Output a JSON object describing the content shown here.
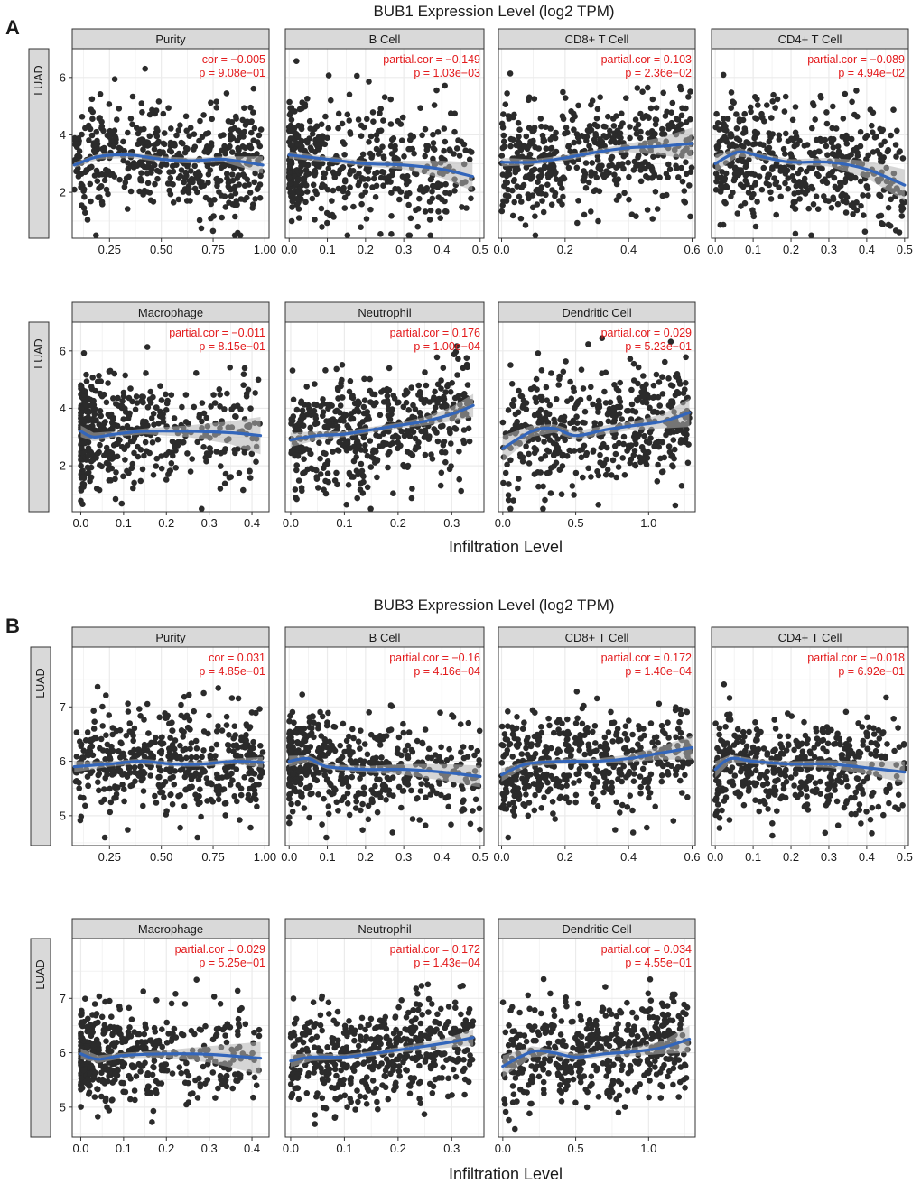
{
  "colors": {
    "panel_bg": "#ffffff",
    "grid": "#ebebeb",
    "strip_bg": "#d9d9d9",
    "border": "#333333",
    "point": "#2b2b2b",
    "smooth": "#3366bb",
    "band": "#b3b3b3",
    "stat": "#e31a1c",
    "text": "#1a1a1a"
  },
  "chart_data": [
    {
      "panel_label": "A",
      "title": "BUB1 Expression Level (log2 TPM)",
      "xlabel": "Infiltration Level",
      "row_label": "LUAD",
      "type": "scatter",
      "ylim": [
        0.4,
        7.0
      ],
      "yticks": [
        2,
        4,
        6
      ],
      "facets": [
        {
          "name": "Purity",
          "xlim": [
            0.07,
            1.02
          ],
          "xticks": [
            0.25,
            0.5,
            0.75,
            1.0
          ],
          "xtick_labels": [
            "0.25",
            "0.50",
            "0.75",
            "1.00"
          ],
          "stat_line1": "cor = −0.005",
          "stat_line2": "p = 9.08e−01",
          "x_range": [
            0.08,
            0.99
          ],
          "x_skew": 1.0,
          "y_center": 3.1,
          "y_spread": 1.2,
          "y_range": [
            0.5,
            6.9
          ],
          "n": 480,
          "smooth": [
            [
              0.08,
              2.95
            ],
            [
              0.2,
              3.25
            ],
            [
              0.35,
              3.3
            ],
            [
              0.5,
              3.15
            ],
            [
              0.65,
              3.1
            ],
            [
              0.8,
              3.15
            ],
            [
              0.99,
              2.95
            ]
          ],
          "band": [
            0.1,
            0.1,
            0.1,
            0.1,
            0.1,
            0.1,
            0.3
          ]
        },
        {
          "name": "B Cell",
          "xlim": [
            -0.01,
            0.51
          ],
          "xticks": [
            0,
            0.1,
            0.2,
            0.3,
            0.4,
            0.5
          ],
          "xtick_labels": [
            "0.0",
            "0.1",
            "0.2",
            "0.3",
            "0.4",
            "0.5"
          ],
          "stat_line1": "partial.cor = −0.149",
          "stat_line2": "p = 1.03e−03",
          "x_range": [
            0.0,
            0.48
          ],
          "x_skew": 1.7,
          "y_center": 3.1,
          "y_spread": 1.2,
          "y_range": [
            0.5,
            6.9
          ],
          "n": 480,
          "smooth": [
            [
              0.0,
              3.3
            ],
            [
              0.1,
              3.15
            ],
            [
              0.2,
              3.0
            ],
            [
              0.3,
              2.95
            ],
            [
              0.4,
              2.8
            ],
            [
              0.48,
              2.55
            ]
          ],
          "band": [
            0.12,
            0.1,
            0.1,
            0.15,
            0.3,
            0.5
          ]
        },
        {
          "name": "CD8+ T Cell",
          "xlim": [
            -0.01,
            0.61
          ],
          "xticks": [
            0,
            0.2,
            0.4,
            0.6
          ],
          "xtick_labels": [
            "0.0",
            "0.2",
            "0.4",
            "0.6"
          ],
          "stat_line1": "partial.cor = 0.103",
          "stat_line2": "p = 2.36e−02",
          "x_range": [
            0.0,
            0.6
          ],
          "x_skew": 1.3,
          "y_center": 3.2,
          "y_spread": 1.2,
          "y_range": [
            0.5,
            6.9
          ],
          "n": 480,
          "smooth": [
            [
              0.0,
              3.05
            ],
            [
              0.1,
              3.05
            ],
            [
              0.2,
              3.2
            ],
            [
              0.3,
              3.4
            ],
            [
              0.4,
              3.55
            ],
            [
              0.5,
              3.6
            ],
            [
              0.6,
              3.7
            ]
          ],
          "band": [
            0.15,
            0.1,
            0.1,
            0.1,
            0.15,
            0.3,
            0.55
          ]
        },
        {
          "name": "CD4+ T Cell",
          "xlim": [
            -0.01,
            0.51
          ],
          "xticks": [
            0,
            0.1,
            0.2,
            0.3,
            0.4,
            0.5
          ],
          "xtick_labels": [
            "0.0",
            "0.1",
            "0.2",
            "0.3",
            "0.4",
            "0.5"
          ],
          "stat_line1": "partial.cor = −0.089",
          "stat_line2": "p = 4.94e−02",
          "x_range": [
            0.0,
            0.5
          ],
          "x_skew": 1.2,
          "y_center": 3.1,
          "y_spread": 1.2,
          "y_range": [
            0.5,
            6.9
          ],
          "n": 480,
          "smooth": [
            [
              0.0,
              3.0
            ],
            [
              0.06,
              3.4
            ],
            [
              0.12,
              3.25
            ],
            [
              0.2,
              3.05
            ],
            [
              0.3,
              3.05
            ],
            [
              0.4,
              2.8
            ],
            [
              0.5,
              2.25
            ]
          ],
          "band": [
            0.3,
            0.15,
            0.1,
            0.1,
            0.15,
            0.3,
            0.55
          ]
        },
        {
          "name": "Macrophage",
          "xlim": [
            -0.02,
            0.44
          ],
          "xticks": [
            0,
            0.1,
            0.2,
            0.3,
            0.4
          ],
          "xtick_labels": [
            "0.0",
            "0.1",
            "0.2",
            "0.3",
            "0.4"
          ],
          "stat_line1": "partial.cor = −0.011",
          "stat_line2": "p = 8.15e−01",
          "x_range": [
            0.0,
            0.42
          ],
          "x_skew": 2.2,
          "y_center": 3.0,
          "y_spread": 1.2,
          "y_range": [
            0.5,
            6.9
          ],
          "n": 480,
          "smooth": [
            [
              0.0,
              3.2
            ],
            [
              0.03,
              3.0
            ],
            [
              0.08,
              3.1
            ],
            [
              0.15,
              3.2
            ],
            [
              0.25,
              3.2
            ],
            [
              0.35,
              3.15
            ],
            [
              0.42,
              3.05
            ]
          ],
          "band": [
            0.2,
            0.15,
            0.1,
            0.1,
            0.2,
            0.4,
            0.65
          ]
        },
        {
          "name": "Neutrophil",
          "xlim": [
            -0.01,
            0.36
          ],
          "xticks": [
            0,
            0.1,
            0.2,
            0.3
          ],
          "xtick_labels": [
            "0.0",
            "0.1",
            "0.2",
            "0.3"
          ],
          "stat_line1": "partial.cor = 0.176",
          "stat_line2": "p = 1.00e−04",
          "x_range": [
            0.0,
            0.34
          ],
          "x_skew": 1.1,
          "y_center": 3.3,
          "y_spread": 1.2,
          "y_range": [
            0.5,
            6.9
          ],
          "n": 480,
          "smooth": [
            [
              0.0,
              2.9
            ],
            [
              0.05,
              3.05
            ],
            [
              0.1,
              3.1
            ],
            [
              0.15,
              3.25
            ],
            [
              0.2,
              3.4
            ],
            [
              0.25,
              3.55
            ],
            [
              0.3,
              3.8
            ],
            [
              0.34,
              4.1
            ]
          ],
          "band": [
            0.25,
            0.15,
            0.1,
            0.1,
            0.1,
            0.15,
            0.25,
            0.4
          ]
        },
        {
          "name": "Dendritic Cell",
          "xlim": [
            -0.03,
            1.32
          ],
          "xticks": [
            0,
            0.5,
            1.0
          ],
          "xtick_labels": [
            "0.0",
            "0.5",
            "1.0"
          ],
          "stat_line1": "partial.cor = 0.029",
          "stat_line2": "p = 5.23e−01",
          "x_range": [
            0.0,
            1.28
          ],
          "x_skew": 1.0,
          "y_center": 3.2,
          "y_spread": 1.2,
          "y_range": [
            0.5,
            6.9
          ],
          "n": 480,
          "smooth": [
            [
              0.0,
              2.6
            ],
            [
              0.2,
              3.2
            ],
            [
              0.35,
              3.3
            ],
            [
              0.5,
              3.05
            ],
            [
              0.7,
              3.25
            ],
            [
              0.9,
              3.4
            ],
            [
              1.1,
              3.55
            ],
            [
              1.28,
              3.85
            ]
          ],
          "band": [
            0.45,
            0.2,
            0.15,
            0.15,
            0.15,
            0.15,
            0.25,
            0.5
          ]
        }
      ]
    },
    {
      "panel_label": "B",
      "title": "BUB3 Expression Level (log2 TPM)",
      "xlabel": "Infiltration Level",
      "row_label": "LUAD",
      "type": "scatter",
      "ylim": [
        4.45,
        8.1
      ],
      "yticks": [
        5,
        6,
        7
      ],
      "facets": [
        {
          "name": "Purity",
          "xlim": [
            0.07,
            1.02
          ],
          "xticks": [
            0.25,
            0.5,
            0.75,
            1.0
          ],
          "xtick_labels": [
            "0.25",
            "0.50",
            "0.75",
            "1.00"
          ],
          "stat_line1": "cor = 0.031",
          "stat_line2": "p = 4.85e−01",
          "x_range": [
            0.08,
            0.99
          ],
          "x_skew": 1.0,
          "y_center": 5.95,
          "y_spread": 0.55,
          "y_range": [
            4.6,
            7.8
          ],
          "n": 480,
          "smooth": [
            [
              0.08,
              5.9
            ],
            [
              0.25,
              5.95
            ],
            [
              0.4,
              6.0
            ],
            [
              0.55,
              5.95
            ],
            [
              0.7,
              5.95
            ],
            [
              0.85,
              6.0
            ],
            [
              0.99,
              5.98
            ]
          ],
          "band": [
            0.1,
            0.05,
            0.05,
            0.05,
            0.05,
            0.05,
            0.1
          ]
        },
        {
          "name": "B Cell",
          "xlim": [
            -0.01,
            0.51
          ],
          "xticks": [
            0,
            0.1,
            0.2,
            0.3,
            0.4,
            0.5
          ],
          "xtick_labels": [
            "0.0",
            "0.1",
            "0.2",
            "0.3",
            "0.4",
            "0.5"
          ],
          "stat_line1": "partial.cor = −0.16",
          "stat_line2": "p = 4.16e−04",
          "x_range": [
            0.0,
            0.5
          ],
          "x_skew": 1.7,
          "y_center": 5.9,
          "y_spread": 0.55,
          "y_range": [
            4.6,
            7.8
          ],
          "n": 480,
          "smooth": [
            [
              0.0,
              6.0
            ],
            [
              0.05,
              6.05
            ],
            [
              0.1,
              5.9
            ],
            [
              0.2,
              5.85
            ],
            [
              0.3,
              5.85
            ],
            [
              0.4,
              5.8
            ],
            [
              0.5,
              5.72
            ]
          ],
          "band": [
            0.1,
            0.06,
            0.05,
            0.06,
            0.1,
            0.15,
            0.2
          ]
        },
        {
          "name": "CD8+ T Cell",
          "xlim": [
            -0.01,
            0.61
          ],
          "xticks": [
            0,
            0.2,
            0.4,
            0.6
          ],
          "xtick_labels": [
            "0.0",
            "0.2",
            "0.4",
            "0.6"
          ],
          "stat_line1": "partial.cor = 0.172",
          "stat_line2": "p = 1.40e−04",
          "x_range": [
            0.0,
            0.6
          ],
          "x_skew": 1.3,
          "y_center": 5.95,
          "y_spread": 0.55,
          "y_range": [
            4.6,
            7.8
          ],
          "n": 480,
          "smooth": [
            [
              0.0,
              5.75
            ],
            [
              0.08,
              5.95
            ],
            [
              0.2,
              6.0
            ],
            [
              0.3,
              6.0
            ],
            [
              0.4,
              6.05
            ],
            [
              0.5,
              6.15
            ],
            [
              0.6,
              6.25
            ]
          ],
          "band": [
            0.12,
            0.05,
            0.05,
            0.05,
            0.07,
            0.12,
            0.22
          ]
        },
        {
          "name": "CD4+ T Cell",
          "xlim": [
            -0.01,
            0.51
          ],
          "xticks": [
            0,
            0.1,
            0.2,
            0.3,
            0.4,
            0.5
          ],
          "xtick_labels": [
            "0.0",
            "0.1",
            "0.2",
            "0.3",
            "0.4",
            "0.5"
          ],
          "stat_line1": "partial.cor = −0.018",
          "stat_line2": "p = 6.92e−01",
          "x_range": [
            0.0,
            0.5
          ],
          "x_skew": 1.2,
          "y_center": 5.9,
          "y_spread": 0.55,
          "y_range": [
            4.6,
            7.8
          ],
          "n": 480,
          "smooth": [
            [
              0.0,
              5.85
            ],
            [
              0.04,
              6.05
            ],
            [
              0.1,
              6.0
            ],
            [
              0.2,
              5.95
            ],
            [
              0.3,
              5.95
            ],
            [
              0.4,
              5.88
            ],
            [
              0.5,
              5.8
            ]
          ],
          "band": [
            0.15,
            0.07,
            0.05,
            0.05,
            0.07,
            0.12,
            0.2
          ]
        },
        {
          "name": "Macrophage",
          "xlim": [
            -0.02,
            0.44
          ],
          "xticks": [
            0,
            0.1,
            0.2,
            0.3,
            0.4
          ],
          "xtick_labels": [
            "0.0",
            "0.1",
            "0.2",
            "0.3",
            "0.4"
          ],
          "stat_line1": "partial.cor = 0.029",
          "stat_line2": "p = 5.25e−01",
          "x_range": [
            0.0,
            0.42
          ],
          "x_skew": 2.2,
          "y_center": 5.9,
          "y_spread": 0.55,
          "y_range": [
            4.6,
            7.8
          ],
          "n": 480,
          "smooth": [
            [
              0.0,
              5.98
            ],
            [
              0.04,
              5.88
            ],
            [
              0.1,
              5.95
            ],
            [
              0.2,
              5.98
            ],
            [
              0.3,
              5.97
            ],
            [
              0.42,
              5.9
            ]
          ],
          "band": [
            0.1,
            0.07,
            0.05,
            0.07,
            0.15,
            0.3
          ]
        },
        {
          "name": "Neutrophil",
          "xlim": [
            -0.01,
            0.36
          ],
          "xticks": [
            0,
            0.1,
            0.2,
            0.3
          ],
          "xtick_labels": [
            "0.0",
            "0.1",
            "0.2",
            "0.3"
          ],
          "stat_line1": "partial.cor = 0.172",
          "stat_line2": "p = 1.43e−04",
          "x_range": [
            0.0,
            0.34
          ],
          "x_skew": 1.1,
          "y_center": 5.95,
          "y_spread": 0.55,
          "y_range": [
            4.6,
            7.8
          ],
          "n": 480,
          "smooth": [
            [
              0.0,
              5.85
            ],
            [
              0.04,
              5.92
            ],
            [
              0.1,
              5.92
            ],
            [
              0.15,
              5.98
            ],
            [
              0.2,
              6.05
            ],
            [
              0.25,
              6.12
            ],
            [
              0.3,
              6.2
            ],
            [
              0.34,
              6.28
            ]
          ],
          "band": [
            0.12,
            0.07,
            0.05,
            0.05,
            0.05,
            0.07,
            0.1,
            0.15
          ]
        },
        {
          "name": "Dendritic Cell",
          "xlim": [
            -0.03,
            1.32
          ],
          "xticks": [
            0,
            0.5,
            1.0
          ],
          "xtick_labels": [
            "0.0",
            "0.5",
            "1.0"
          ],
          "stat_line1": "partial.cor = 0.034",
          "stat_line2": "p = 4.55e−01",
          "x_range": [
            0.0,
            1.28
          ],
          "x_skew": 1.0,
          "y_center": 5.95,
          "y_spread": 0.55,
          "y_range": [
            4.6,
            7.8
          ],
          "n": 480,
          "smooth": [
            [
              0.0,
              5.75
            ],
            [
              0.2,
              6.02
            ],
            [
              0.35,
              6.0
            ],
            [
              0.5,
              5.92
            ],
            [
              0.7,
              5.98
            ],
            [
              0.9,
              6.02
            ],
            [
              1.1,
              6.1
            ],
            [
              1.28,
              6.25
            ]
          ],
          "band": [
            0.2,
            0.1,
            0.06,
            0.06,
            0.06,
            0.08,
            0.12,
            0.25
          ]
        }
      ]
    }
  ]
}
